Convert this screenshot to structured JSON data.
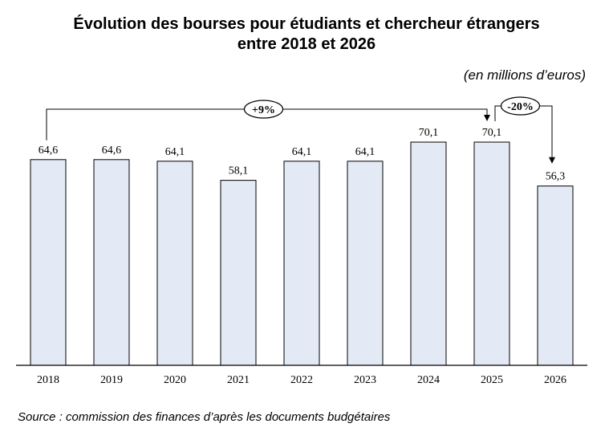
{
  "title_lines": [
    "Évolution des bourses pour étudiants et chercheur étrangers",
    "entre 2018 et 2026"
  ],
  "unit_label": "(en millions d’euros)",
  "source": "Source : commission des finances d’après les documents budgétaires",
  "colors": {
    "bar_fill": "#E3EAF6",
    "bar_stroke": "#000000",
    "text": "#000000"
  },
  "chart_data": {
    "type": "bar",
    "title": "Évolution des bourses pour étudiants et chercheur étrangers entre 2018 et 2026",
    "categories": [
      "2018",
      "2019",
      "2020",
      "2021",
      "2022",
      "2023",
      "2024",
      "2025",
      "2026"
    ],
    "values": [
      64.6,
      64.6,
      64.1,
      58.1,
      64.1,
      64.1,
      70.1,
      70.1,
      56.3
    ],
    "data_labels": [
      "64,6",
      "64,6",
      "64,1",
      "58,1",
      "64,1",
      "64,1",
      "70,1",
      "70,1",
      "56,3"
    ],
    "xlabel": "",
    "ylabel": "",
    "ylim": [
      0,
      70.1
    ],
    "grid": false,
    "annotations": [
      {
        "text": "+9%",
        "from": "2018",
        "to": "2025"
      },
      {
        "text": "-20%",
        "from": "2025",
        "to": "2026"
      }
    ]
  }
}
